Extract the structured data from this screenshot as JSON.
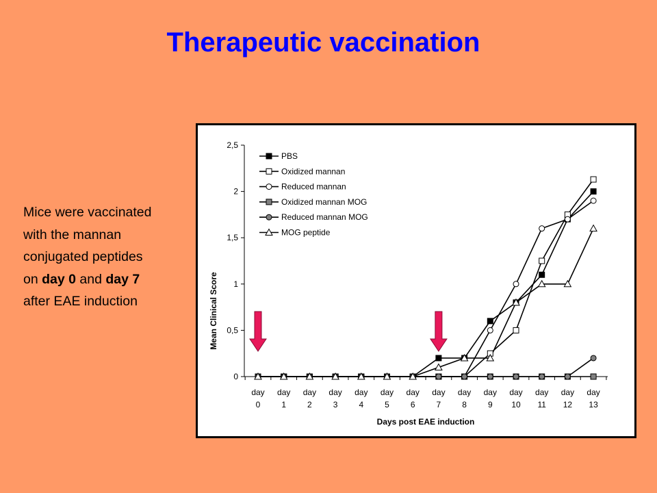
{
  "slide": {
    "title": "Therapeutic vaccination",
    "description_lines": [
      {
        "pre": "Mice were vaccinated",
        "bold": "",
        "mid": "",
        "bold2": "",
        "post": ""
      },
      {
        "pre": "with the mannan",
        "bold": "",
        "mid": "",
        "bold2": "",
        "post": ""
      },
      {
        "pre": "conjugated peptides",
        "bold": "",
        "mid": "",
        "bold2": "",
        "post": ""
      },
      {
        "pre": "on ",
        "bold": "day 0",
        "mid": " and ",
        "bold2": "day 7",
        "post": ""
      },
      {
        "pre": "after EAE induction",
        "bold": "",
        "mid": "",
        "bold2": "",
        "post": ""
      }
    ]
  },
  "chart_data": {
    "type": "line",
    "xlabel": "Days post EAE induction",
    "ylabel": "Mean Clinical Score",
    "ylim": [
      0,
      2.5
    ],
    "yticks": [
      "0",
      "0,5",
      "1",
      "1,5",
      "2",
      "2,5"
    ],
    "ytick_values": [
      0,
      0.5,
      1,
      1.5,
      2,
      2.5
    ],
    "categories": [
      {
        "day": "day",
        "num": "0"
      },
      {
        "day": "day",
        "num": "1"
      },
      {
        "day": "day",
        "num": "2"
      },
      {
        "day": "day",
        "num": "3"
      },
      {
        "day": "day",
        "num": "4"
      },
      {
        "day": "day",
        "num": "5"
      },
      {
        "day": "day",
        "num": "6"
      },
      {
        "day": "day",
        "num": "7"
      },
      {
        "day": "day",
        "num": "8"
      },
      {
        "day": "day",
        "num": "9"
      },
      {
        "day": "day",
        "num": "10"
      },
      {
        "day": "day",
        "num": "11"
      },
      {
        "day": "day",
        "num": "12"
      },
      {
        "day": "day",
        "num": "13"
      }
    ],
    "grid": false,
    "legend_position": "top-left",
    "arrows_at_days": [
      0,
      7
    ],
    "arrow_color": "#E8185A",
    "series": [
      {
        "name": "PBS",
        "marker": "square",
        "fill": "#000000",
        "values": [
          0,
          0,
          0,
          0,
          0,
          0,
          0,
          0.2,
          0.2,
          0.6,
          0.8,
          1.1,
          1.7,
          2.0
        ]
      },
      {
        "name": "Oxidized mannan",
        "marker": "square",
        "fill": "#FFFFFF",
        "values": [
          0,
          0,
          0,
          0,
          0,
          0,
          0,
          0,
          0,
          0.25,
          0.5,
          1.25,
          1.75,
          2.13
        ]
      },
      {
        "name": "Reduced mannan",
        "marker": "circle",
        "fill": "#FFFFFF",
        "values": [
          0,
          0,
          0,
          0,
          0,
          0,
          0,
          0,
          0,
          0.5,
          1.0,
          1.6,
          1.7,
          1.9
        ]
      },
      {
        "name": "Oxidized mannan MOG",
        "marker": "square",
        "fill": "#808080",
        "values": [
          0,
          0,
          0,
          0,
          0,
          0,
          0,
          0,
          0,
          0,
          0,
          0,
          0,
          0
        ]
      },
      {
        "name": "Reduced mannan MOG",
        "marker": "circle",
        "fill": "#808080",
        "values": [
          0,
          0,
          0,
          0,
          0,
          0,
          0,
          0,
          0,
          0,
          0,
          0,
          0,
          0.2
        ]
      },
      {
        "name": "MOG peptide",
        "marker": "triangle",
        "fill": "#FFFFFF",
        "values": [
          0,
          0,
          0,
          0,
          0,
          0,
          0,
          0.1,
          0.2,
          0.2,
          0.8,
          1.0,
          1.0,
          1.6
        ]
      }
    ]
  }
}
